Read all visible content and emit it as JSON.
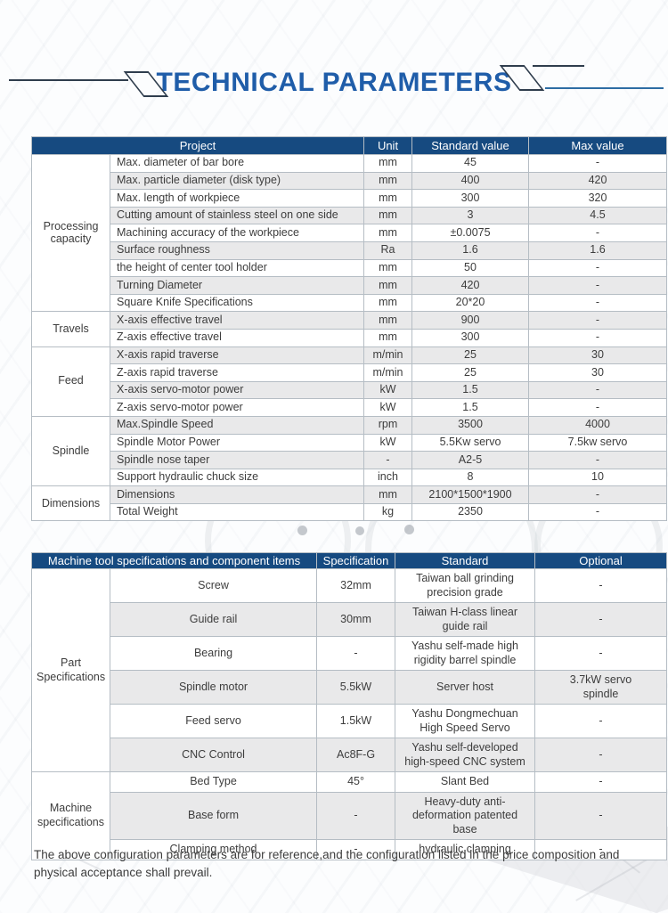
{
  "title": "TECHNICAL PARAMETERS",
  "colors": {
    "header_bg": "#164a80",
    "title_blue": "#1f5da9",
    "stripe_gray": "#e9e9ea",
    "border_gray": "#b5bdc4",
    "text_gray": "#3d3d3d",
    "deco_line_dark": "#2f3d4d",
    "deco_line_blue": "#2e6da4"
  },
  "table1": {
    "headers": {
      "project": "Project",
      "unit": "Unit",
      "standard": "Standard value",
      "max": "Max value"
    },
    "groups": [
      {
        "label": "Processing capacity",
        "rows": [
          [
            "Max. diameter of bar bore",
            "mm",
            "45",
            "-"
          ],
          [
            "Max. particle diameter (disk type)",
            "mm",
            "400",
            "420"
          ],
          [
            "Max. length of workpiece",
            "mm",
            "300",
            "320"
          ],
          [
            "Cutting amount of stainless steel on one side",
            "mm",
            "3",
            "4.5"
          ],
          [
            "Machining accuracy of the workpiece",
            "mm",
            "±0.0075",
            "-"
          ],
          [
            "Surface roughness",
            "Ra",
            "1.6",
            "1.6"
          ],
          [
            "the height of center tool holder",
            "mm",
            "50",
            "-"
          ],
          [
            "Turning Diameter",
            "mm",
            "420",
            "-"
          ],
          [
            "Square Knife Specifications",
            "mm",
            "20*20",
            "-"
          ]
        ]
      },
      {
        "label": "Travels",
        "rows": [
          [
            "X-axis  effective travel",
            "mm",
            "900",
            "-"
          ],
          [
            "Z-axis effective  travel",
            "mm",
            "300",
            "-"
          ]
        ]
      },
      {
        "label": "Feed",
        "rows": [
          [
            "X-axis rapid traverse",
            "m/min",
            "25",
            "30"
          ],
          [
            "Z-axis rapid traverse",
            "m/min",
            "25",
            "30"
          ],
          [
            "X-axis servo-motor power",
            "kW",
            "1.5",
            "-"
          ],
          [
            "Z-axis servo-motor power",
            "kW",
            "1.5",
            "-"
          ]
        ]
      },
      {
        "label": "Spindle",
        "rows": [
          [
            "Max.Spindle Speed",
            "rpm",
            "3500",
            "4000"
          ],
          [
            "Spindle Motor Power",
            "kW",
            "5.5Kw servo",
            "7.5kw servo"
          ],
          [
            "Spindle nose taper",
            "-",
            "A2-5",
            "-"
          ],
          [
            "Support hydraulic chuck size",
            "inch",
            "8",
            "10"
          ]
        ]
      },
      {
        "label": "Dimensions",
        "rows": [
          [
            "Dimensions",
            "mm",
            "2100*1500*1900",
            "-"
          ],
          [
            "Total Weight",
            "kg",
            "2350",
            "-"
          ]
        ]
      }
    ]
  },
  "table2": {
    "headers": {
      "items": "Machine tool specifications and component items",
      "specification": "Specification",
      "standard": "Standard",
      "optional": "Optional"
    },
    "groups": [
      {
        "label": "Part Specifications",
        "rows": [
          [
            "Screw",
            "32mm",
            "Taiwan ball grinding precision grade",
            "-"
          ],
          [
            "Guide rail",
            "30mm",
            "Taiwan H-class linear guide rail",
            "-"
          ],
          [
            "Bearing",
            "-",
            "Yashu self-made high rigidity barrel spindle",
            "-"
          ],
          [
            "Spindle motor",
            "5.5kW",
            "Server host",
            "3.7kW servo spindle"
          ],
          [
            "Feed servo",
            "1.5kW",
            "Yashu Dongmechuan High Speed Servo",
            "-"
          ],
          [
            "CNC Control",
            "Ac8F-G",
            "Yashu self-developed high-speed CNC system",
            "-"
          ]
        ]
      },
      {
        "label": "Machine specifications",
        "rows": [
          [
            "Bed Type",
            "45°",
            "Slant Bed",
            "-"
          ],
          [
            "Base form",
            "-",
            "Heavy-duty anti-deformation patented base",
            "-"
          ],
          [
            "Clamping method",
            "-",
            "hydraulic clamping",
            "-"
          ]
        ]
      }
    ]
  },
  "footer_note": "The above configuration parameters are for reference,and the configuration listed in the price composition and physical acceptance shall prevail."
}
